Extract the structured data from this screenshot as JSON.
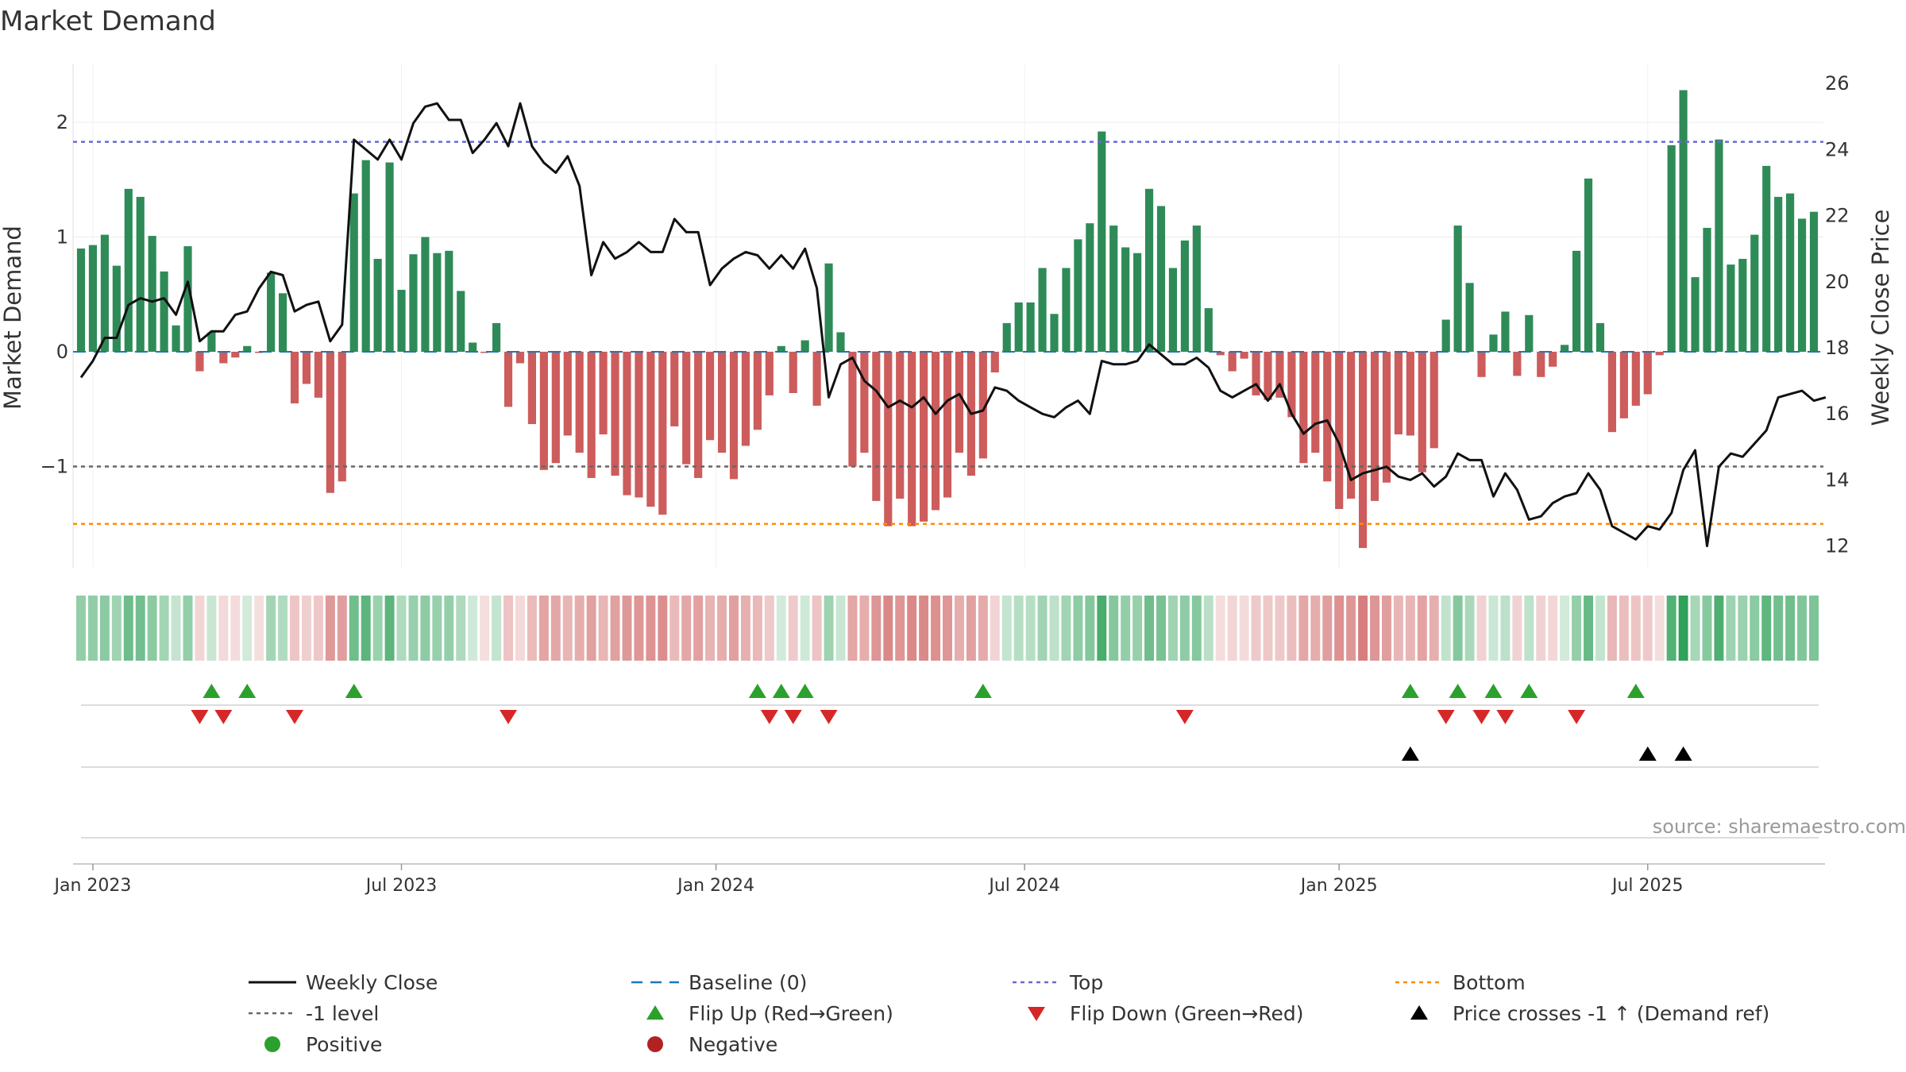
{
  "chart_data": {
    "type": "bar+line",
    "title": "Market Demand",
    "ylabel_left": "Market Demand",
    "ylabel_right": "Weekly Close Price",
    "ylim_left": [
      -1.9,
      2.5
    ],
    "ylim_right": [
      11,
      27
    ],
    "left_ticks": [
      2,
      1,
      0,
      -1
    ],
    "left_tick_labels": [
      "2",
      "1",
      "0",
      "−1"
    ],
    "right_ticks": [
      26,
      24,
      22,
      20,
      18,
      16,
      14,
      12
    ],
    "date_ticks": [
      {
        "label": "Jan 2023",
        "week": 1
      },
      {
        "label": "Jul 2023",
        "week": 27
      },
      {
        "label": "Jan 2024",
        "week": 53.5
      },
      {
        "label": "Jul 2024",
        "week": 79.5
      },
      {
        "label": "Jan 2025",
        "week": 106
      },
      {
        "label": "Jul 2025",
        "week": 132
      }
    ],
    "levels": {
      "top": 1.83,
      "minus_one": -1.0,
      "bottom": -1.5
    },
    "demand": [
      0.9,
      0.93,
      1.02,
      0.75,
      1.42,
      1.35,
      1.01,
      0.7,
      0.23,
      0.92,
      -0.17,
      0.17,
      -0.1,
      -0.05,
      0.05,
      -0.01,
      0.69,
      0.51,
      -0.45,
      -0.28,
      -0.4,
      -1.23,
      -1.13,
      1.38,
      1.67,
      0.81,
      1.65,
      0.54,
      0.85,
      1.0,
      0.86,
      0.88,
      0.53,
      0.08,
      -0.01,
      0.25,
      -0.48,
      -0.1,
      -0.63,
      -1.03,
      -0.97,
      -0.73,
      -0.88,
      -1.1,
      -0.72,
      -1.08,
      -1.25,
      -1.27,
      -1.35,
      -1.42,
      -0.65,
      -0.98,
      -1.1,
      -0.77,
      -0.88,
      -1.11,
      -0.82,
      -0.68,
      -0.38,
      0.05,
      -0.36,
      0.1,
      -0.47,
      0.77,
      0.17,
      -1.0,
      -0.88,
      -1.3,
      -1.52,
      -1.28,
      -1.52,
      -1.48,
      -1.38,
      -1.27,
      -0.88,
      -1.08,
      -0.93,
      -0.18,
      0.25,
      0.43,
      0.43,
      0.73,
      0.33,
      0.73,
      0.98,
      1.12,
      1.92,
      1.1,
      0.91,
      0.86,
      1.42,
      1.27,
      0.73,
      0.97,
      1.1,
      0.38,
      -0.03,
      -0.17,
      -0.06,
      -0.38,
      -0.42,
      -0.4,
      -0.57,
      -0.97,
      -0.88,
      -1.13,
      -1.37,
      -1.28,
      -1.71,
      -1.3,
      -1.14,
      -0.72,
      -0.73,
      -1.05,
      -0.84,
      0.28,
      1.1,
      0.6,
      -0.22,
      0.15,
      0.35,
      -0.21,
      0.32,
      -0.22,
      -0.13,
      0.06,
      0.88,
      1.51,
      0.25,
      -0.7,
      -0.58,
      -0.47,
      -0.37,
      -0.03,
      1.8,
      2.28,
      0.65,
      1.08,
      1.85,
      0.76,
      0.81,
      1.02,
      1.62,
      1.35,
      1.38,
      1.16,
      1.22
    ],
    "weekly_close": [
      17.1,
      17.6,
      18.3,
      18.3,
      19.3,
      19.5,
      19.4,
      19.5,
      19.0,
      20.0,
      18.2,
      18.5,
      18.5,
      19.0,
      19.1,
      19.8,
      20.3,
      20.2,
      19.1,
      19.3,
      19.4,
      18.2,
      18.7,
      24.3,
      24.0,
      23.7,
      24.3,
      23.7,
      24.8,
      25.3,
      25.4,
      24.9,
      24.9,
      23.9,
      24.3,
      24.8,
      24.1,
      25.4,
      24.1,
      23.6,
      23.3,
      23.8,
      22.9,
      20.2,
      21.2,
      20.7,
      20.9,
      21.2,
      20.9,
      20.9,
      21.9,
      21.5,
      21.5,
      19.9,
      20.4,
      20.7,
      20.9,
      20.8,
      20.4,
      20.8,
      20.4,
      21.0,
      19.8,
      16.5,
      17.5,
      17.7,
      17.0,
      16.7,
      16.2,
      16.4,
      16.2,
      16.5,
      16.0,
      16.4,
      16.6,
      16.0,
      16.1,
      16.8,
      16.7,
      16.4,
      16.2,
      16.0,
      15.9,
      16.2,
      16.4,
      16.0,
      17.6,
      17.5,
      17.5,
      17.6,
      18.1,
      17.8,
      17.5,
      17.5,
      17.7,
      17.4,
      16.7,
      16.5,
      16.7,
      16.9,
      16.4,
      16.9,
      16.0,
      15.4,
      15.7,
      15.8,
      15.1,
      14.0,
      14.2,
      14.3,
      14.4,
      14.1,
      14.0,
      14.2,
      13.8,
      14.1,
      14.8,
      14.6,
      14.6,
      13.5,
      14.2,
      13.7,
      12.8,
      12.9,
      13.3,
      13.5,
      13.6,
      14.2,
      13.7,
      12.6,
      12.4,
      12.2,
      12.6,
      12.5,
      13.0,
      14.3,
      14.9,
      12.0,
      14.4,
      14.8,
      14.7,
      15.1,
      15.5,
      16.5,
      16.6,
      16.7,
      16.4,
      16.5
    ],
    "flip_up_weeks": [
      11,
      14,
      23,
      57,
      59,
      61,
      76,
      112,
      116,
      119,
      122,
      131
    ],
    "flip_down_weeks": [
      10,
      12,
      18,
      36,
      58,
      60,
      63,
      93,
      115,
      118,
      120,
      126
    ],
    "price_cross_weeks": [
      112,
      132,
      135
    ],
    "source": "source: sharemaestro.com",
    "legend": [
      {
        "label": "Weekly Close",
        "symbol": "line-black"
      },
      {
        "label": "Baseline (0)",
        "symbol": "dash-blue"
      },
      {
        "label": "Top",
        "symbol": "dot-purple"
      },
      {
        "label": "Bottom",
        "symbol": "dot-orange"
      },
      {
        "label": "-1 level",
        "symbol": "dot-gray"
      },
      {
        "label": "Flip Up (Red→Green)",
        "symbol": "tri-up-green"
      },
      {
        "label": "Flip Down (Green→Red)",
        "symbol": "tri-down-red"
      },
      {
        "label": "Price crosses -1 ↑ (Demand ref)",
        "symbol": "tri-up-black"
      },
      {
        "label": "Positive",
        "symbol": "circle-green"
      },
      {
        "label": "Negative",
        "symbol": "circle-red"
      }
    ]
  },
  "colors": {
    "positive": "#2e8b57",
    "negative": "#cd5c5c",
    "close_line": "#111111",
    "baseline": "#1f77b4",
    "top": "#6a6ad0",
    "bottom": "#ff8c00",
    "minus_one": "#666666",
    "flip_up": "#2ca02c",
    "flip_down": "#d62728",
    "price_cross": "#000000",
    "positive_dot": "#2ca02c",
    "negative_dot": "#b22222"
  }
}
